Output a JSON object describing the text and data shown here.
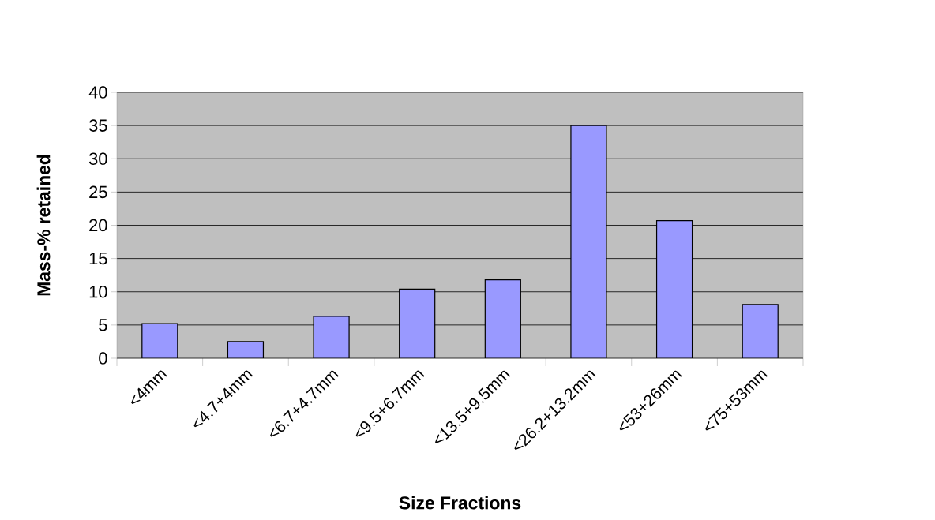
{
  "chart_data": {
    "type": "bar",
    "xlabel": "Size Fractions",
    "ylabel": "Mass-% retained",
    "categories": [
      "<4mm",
      "<4.7+4mm",
      "<6.7+4.7mm",
      "<9.5+6.7mm",
      "<13.5+9.5mm",
      "<26.2+13.2mm",
      "<53+26mm",
      "<75+53mm"
    ],
    "values": [
      5.2,
      2.5,
      6.3,
      10.4,
      11.8,
      35,
      20.7,
      8.1
    ],
    "color": "#9999ff",
    "ylim": [
      0,
      40
    ],
    "yticks": [
      0,
      5,
      10,
      15,
      20,
      25,
      30,
      35,
      40
    ],
    "grid": "y"
  }
}
